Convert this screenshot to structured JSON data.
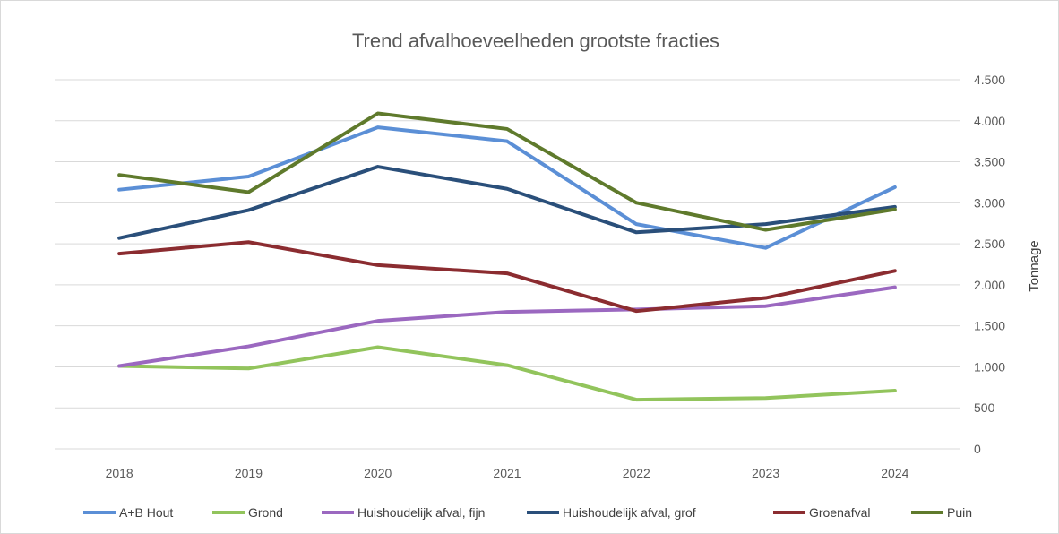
{
  "chart_data": {
    "type": "line",
    "title": "Trend afvalhoeveelheden  grootste fracties",
    "xlabel": "",
    "ylabel": "Tonnage",
    "categories": [
      "2018",
      "2019",
      "2020",
      "2021",
      "2022",
      "2023",
      "2024"
    ],
    "ylim": [
      0,
      4500
    ],
    "yticks": [
      0,
      500,
      1000,
      1500,
      2000,
      2500,
      3000,
      3500,
      4000,
      4500
    ],
    "ytick_labels": [
      "0",
      "500",
      "1.000",
      "1.500",
      "2.000",
      "2.500",
      "3.000",
      "3.500",
      "4.000",
      "4.500"
    ],
    "y_axis_side": "right",
    "grid": true,
    "legend_position": "bottom",
    "series": [
      {
        "name": "A+B Hout",
        "color": "#5b8fd6",
        "values": [
          3160,
          3320,
          3920,
          3750,
          2740,
          2450,
          3190
        ]
      },
      {
        "name": "Grond",
        "color": "#92c45c",
        "values": [
          1010,
          980,
          1240,
          1020,
          600,
          620,
          710
        ]
      },
      {
        "name": "Huishoudelijk afval, fijn",
        "color": "#9b68c0",
        "values": [
          1010,
          1250,
          1560,
          1670,
          1700,
          1740,
          1970
        ]
      },
      {
        "name": "Huishoudelijk afval, grof",
        "color": "#2a4f7a",
        "values": [
          2570,
          2910,
          3440,
          3170,
          2640,
          2740,
          2950
        ]
      },
      {
        "name": "Groenafval",
        "color": "#8b2c30",
        "values": [
          2380,
          2520,
          2240,
          2140,
          1680,
          1840,
          2170
        ]
      },
      {
        "name": "Puin",
        "color": "#5f7a2c",
        "values": [
          3340,
          3130,
          4090,
          3900,
          3000,
          2670,
          2920
        ]
      }
    ]
  }
}
